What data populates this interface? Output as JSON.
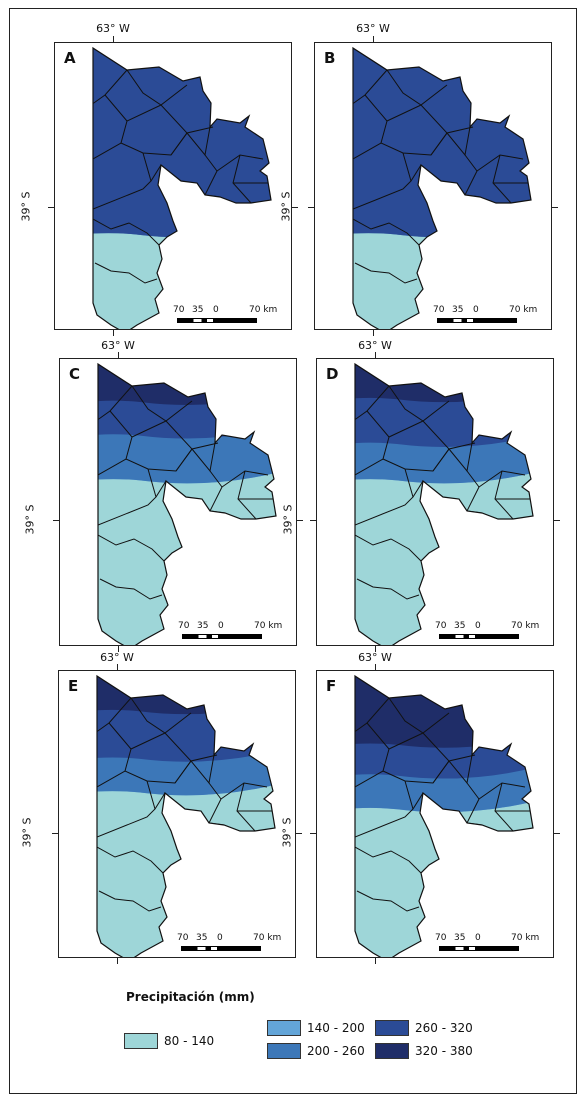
{
  "colors": {
    "c1": "#9ed6d8",
    "c2": "#63a5d8",
    "c3": "#3c77b8",
    "c4": "#2b4b96",
    "c5": "#1f2d68",
    "border": "#111111"
  },
  "axis": {
    "lon_label": "63° W",
    "lat_label": "39° S"
  },
  "scale": {
    "n70": "70",
    "n35": "35",
    "n0": "0",
    "n70km": "70 km"
  },
  "panels": [
    {
      "label": "A",
      "bands": [
        0.34,
        0.68,
        0.68,
        1.0,
        1.0
      ]
    },
    {
      "label": "B",
      "bands": [
        0.52,
        0.68,
        0.68,
        1.0,
        1.0
      ]
    },
    {
      "label": "C",
      "bands": [
        0.43,
        0.43,
        0.27,
        0.15,
        0.03
      ]
    },
    {
      "label": "D",
      "bands": [
        0.43,
        0.43,
        0.3,
        0.14,
        1.0
      ]
    },
    {
      "label": "E",
      "bands": [
        0.43,
        0.43,
        0.31,
        0.14,
        1.0
      ]
    },
    {
      "label": "F",
      "bands": [
        0.49,
        0.49,
        0.37,
        0.26,
        0.12
      ]
    }
  ],
  "legend": {
    "title": "Precipitación (mm)",
    "items": [
      {
        "label": "80 - 140",
        "color": "#9ed6d8"
      },
      {
        "label": "140 - 200",
        "color": "#63a5d8"
      },
      {
        "label": "200 - 260",
        "color": "#3c77b8"
      },
      {
        "label": "260 - 320",
        "color": "#2b4b96"
      },
      {
        "label": "320 - 380",
        "color": "#1f2d68"
      }
    ]
  }
}
